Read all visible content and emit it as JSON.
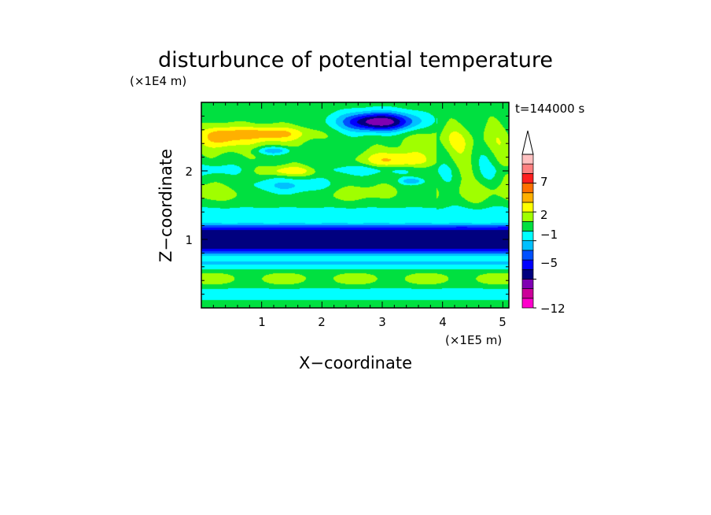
{
  "chart_data": {
    "type": "heatmap",
    "title": "disturbunce of potential temperature",
    "xlabel": "X−coordinate",
    "ylabel": "Z−coordinate",
    "x_unit": "(×1E5 m)",
    "y_unit": "(×1E4 m)",
    "time_label": "t=144000 s",
    "xlim": [
      0,
      5.1
    ],
    "ylim": [
      0,
      3.0
    ],
    "x_ticks": [
      "1",
      "2",
      "3",
      "4",
      "5"
    ],
    "x_tick_values": [
      1,
      2,
      3,
      4,
      5
    ],
    "y_ticks": [
      "1",
      "2"
    ],
    "y_tick_values": [
      1,
      2
    ],
    "grid": false,
    "colorbar": {
      "labels": [
        {
          "text": "7",
          "value": 7
        },
        {
          "text": "2",
          "value": 2
        },
        {
          "text": "−1",
          "value": -1
        },
        {
          "text": "−5",
          "value": -5
        },
        {
          "text": "−12",
          "value": -12
        }
      ],
      "levels": [
        -12,
        -9,
        -7,
        -5,
        -4,
        -3,
        -2,
        -1,
        0,
        1,
        2,
        3,
        5,
        7,
        9,
        11
      ],
      "colors": [
        "#ff00cc",
        "#cc0099",
        "#7f00b2",
        "#00007f",
        "#0000ff",
        "#0050ff",
        "#00c0ff",
        "#00ffff",
        "#00e040",
        "#a0ff00",
        "#ffff00",
        "#ffb000",
        "#ff7000",
        "#ff2020",
        "#ff8080",
        "#ffc0c0"
      ],
      "extend": "max"
    },
    "z_description": "Contoured disturbance of potential temperature over X (0–5.1 ×1E5 m) and Z (0–3 ×1E4 m)."
  }
}
